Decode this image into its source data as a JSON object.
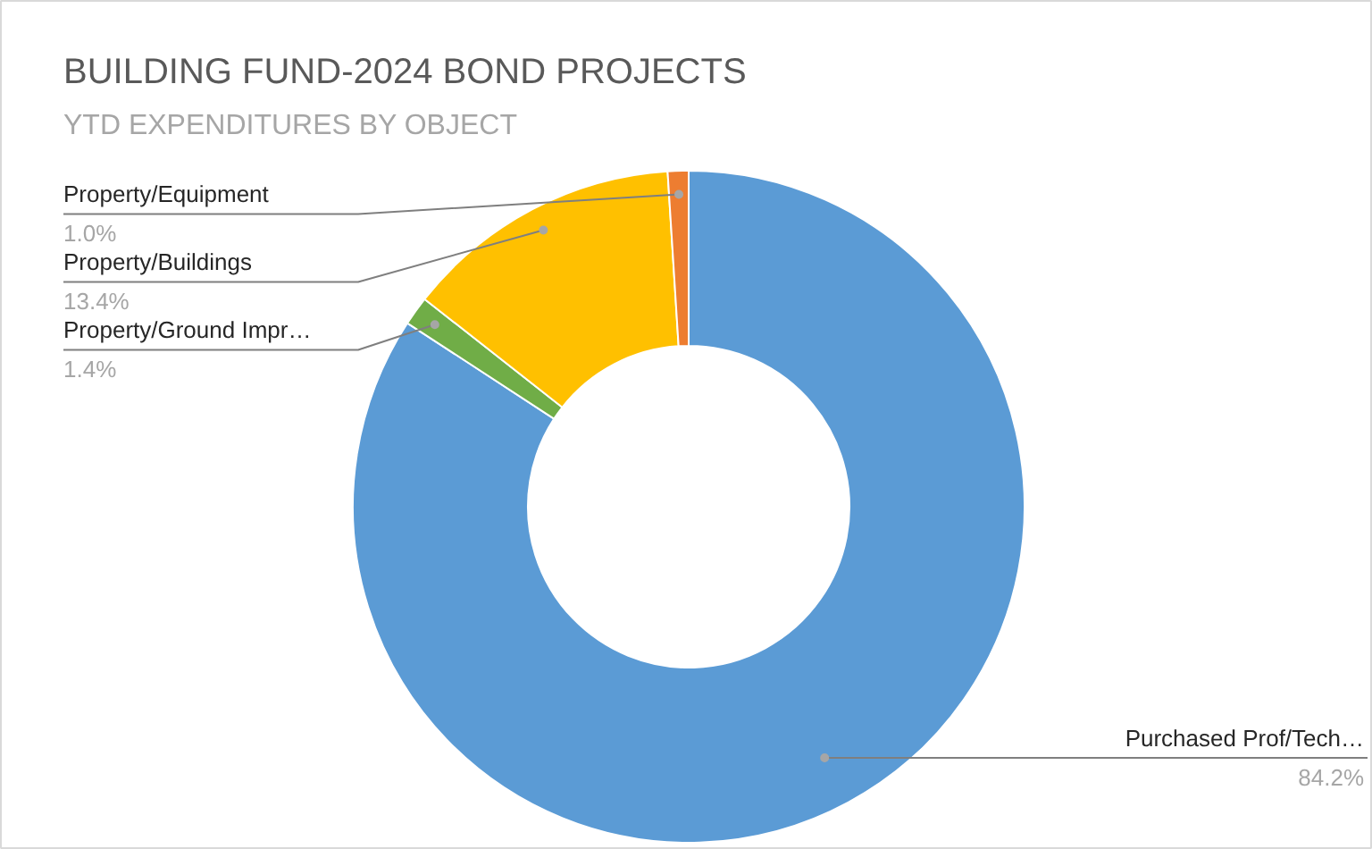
{
  "chart_data": {
    "type": "donut",
    "title": "BUILDING FUND-2024 BOND PROJECTS",
    "subtitle": "YTD EXPENDITURES BY OBJECT",
    "categories": [
      "Purchased Prof/Tech…",
      "Property/Ground Impr…",
      "Property/Buildings",
      "Property/Equipment"
    ],
    "values": [
      84.2,
      1.4,
      13.4,
      1.0
    ],
    "value_labels": [
      "84.2%",
      "1.4%",
      "13.4%",
      "1.0%"
    ],
    "colors": [
      "#5b9bd5",
      "#70ad47",
      "#ffc000",
      "#ed7d31"
    ],
    "legend": false
  }
}
